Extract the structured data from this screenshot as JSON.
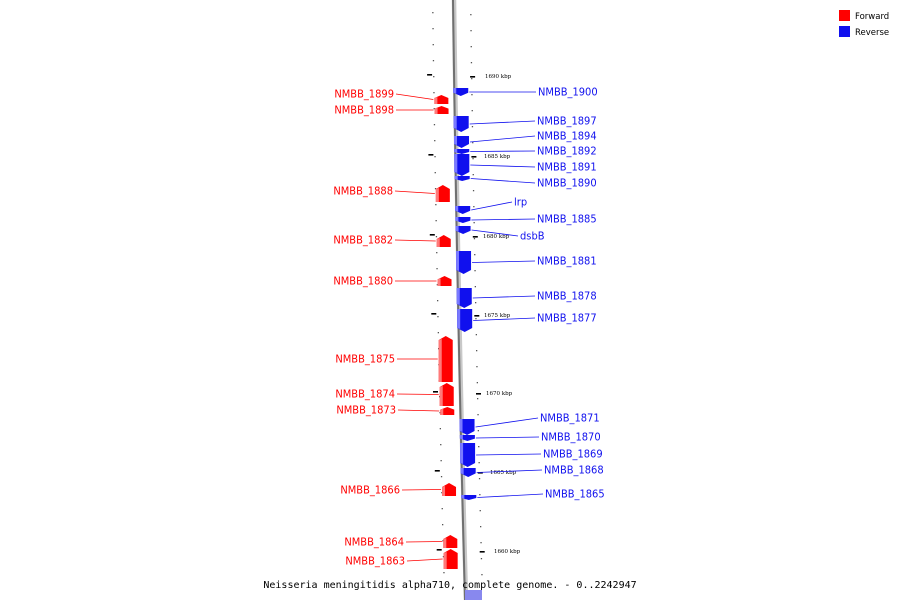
{
  "legend": {
    "forward": {
      "label": "Forward",
      "color": "#ff0000"
    },
    "reverse": {
      "label": "Reverse",
      "color": "#1010ee"
    }
  },
  "caption": "Neisseria meningitidis alpha710, complete genome. - 0..2242947",
  "ticks": [
    {
      "label": "1690 kbp"
    },
    {
      "label": "1685 kbp"
    },
    {
      "label": "1680 kbp"
    },
    {
      "label": "1675 kbp"
    },
    {
      "label": "1670 kbp"
    },
    {
      "label": "1665 kbp"
    },
    {
      "label": "1660 kbp"
    }
  ],
  "forward_genes": [
    "NMBB_1899",
    "NMBB_1898",
    "NMBB_1888",
    "NMBB_1882",
    "NMBB_1880",
    "NMBB_1875",
    "NMBB_1874",
    "NMBB_1873",
    "NMBB_1866",
    "NMBB_1864",
    "NMBB_1863"
  ],
  "reverse_genes": [
    "NMBB_1900",
    "NMBB_1897",
    "NMBB_1894",
    "NMBB_1892",
    "NMBB_1891",
    "NMBB_1890",
    "lrp",
    "NMBB_1885",
    "dsbB",
    "NMBB_1881",
    "NMBB_1878",
    "NMBB_1877",
    "NMBB_1871",
    "NMBB_1870",
    "NMBB_1869",
    "NMBB_1868",
    "NMBB_1865"
  ]
}
